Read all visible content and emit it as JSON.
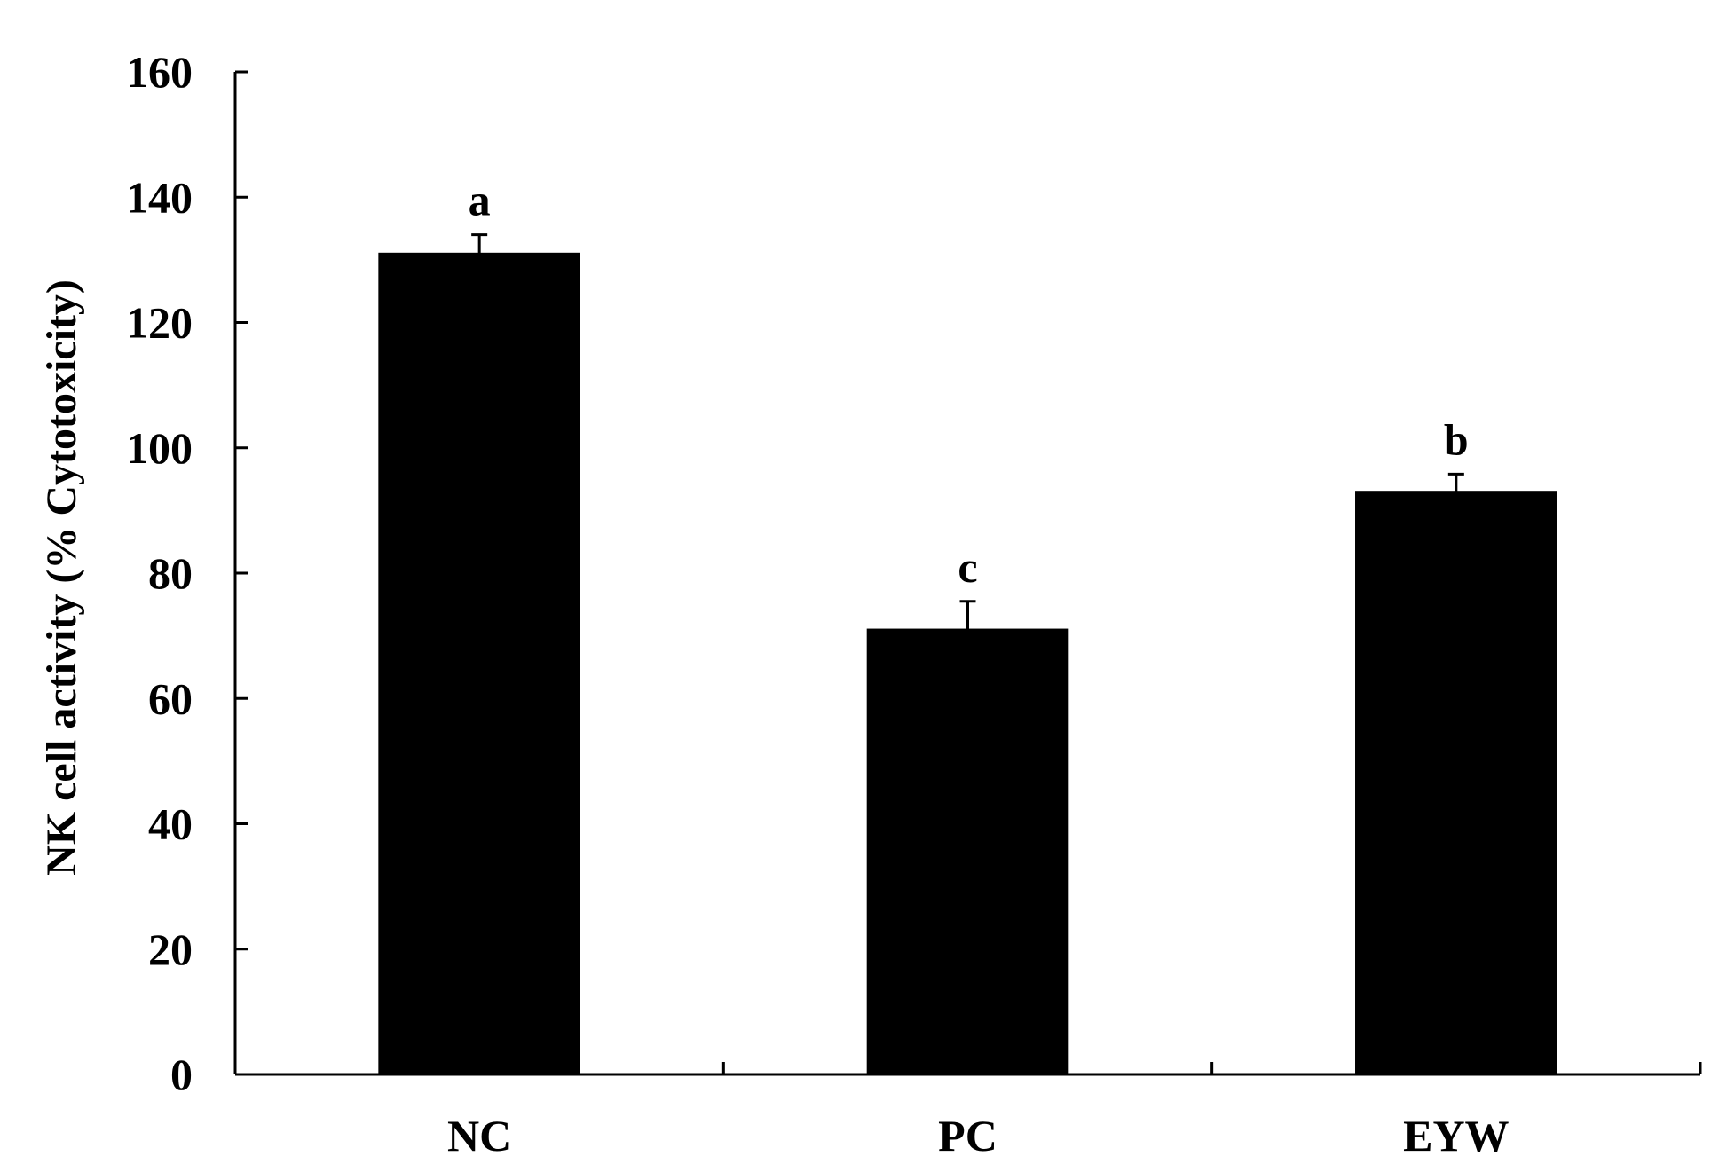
{
  "chart_data": {
    "type": "bar",
    "title": "",
    "xlabel": "",
    "ylabel": "NK cell activity (% Cytotoxicity)",
    "ylim": [
      0,
      160
    ],
    "yticks": [
      0,
      20,
      40,
      60,
      80,
      100,
      120,
      140,
      160
    ],
    "categories": [
      "NC",
      "PC",
      "EYW"
    ],
    "values": [
      131,
      71,
      93
    ],
    "errors": [
      3,
      4.5,
      2.8
    ],
    "significance": [
      "a",
      "c",
      "b"
    ],
    "bar_color": "#000000",
    "grid": false
  }
}
